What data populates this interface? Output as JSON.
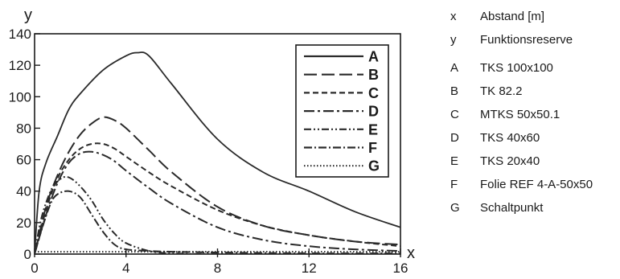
{
  "chart_data": {
    "type": "line",
    "xlabel": "x",
    "ylabel": "y",
    "xlim": [
      0,
      16
    ],
    "ylim": [
      0,
      140
    ],
    "x_ticks": [
      0,
      4,
      8,
      12,
      16
    ],
    "y_ticks": [
      0,
      20,
      40,
      60,
      80,
      100,
      120,
      140
    ],
    "grid": false,
    "legend_position": "top-right",
    "series": [
      {
        "name": "A",
        "dash": "solid",
        "x": [
          0,
          0.2,
          0.5,
          1,
          1.5,
          2,
          3,
          4,
          4.5,
          5,
          6,
          8,
          10,
          12,
          14,
          16
        ],
        "y": [
          0,
          40,
          58,
          75,
          92,
          102,
          117,
          126,
          128,
          126,
          108,
          73,
          52,
          40,
          27,
          17
        ]
      },
      {
        "name": "B",
        "dash": "long-dash",
        "x": [
          0,
          0.5,
          1,
          1.5,
          2,
          2.5,
          3,
          3.5,
          4,
          5,
          6,
          8,
          10,
          12,
          14,
          16
        ],
        "y": [
          0,
          30,
          50,
          65,
          76,
          83,
          87,
          85,
          80,
          66,
          52,
          30,
          18,
          12,
          8,
          6
        ]
      },
      {
        "name": "C",
        "dash": "short-dash",
        "x": [
          0,
          0.5,
          1,
          1.5,
          2,
          2.5,
          3,
          3.5,
          4,
          5,
          6,
          8,
          10,
          12,
          14,
          16
        ],
        "y": [
          0,
          28,
          48,
          60,
          67,
          70,
          70,
          67,
          62,
          52,
          43,
          28,
          18,
          12,
          8,
          5
        ]
      },
      {
        "name": "D",
        "dash": "dash-dot",
        "x": [
          0,
          0.5,
          1,
          1.5,
          2,
          2.5,
          3,
          3.5,
          4,
          5,
          6,
          8,
          10,
          12,
          14,
          16
        ],
        "y": [
          0,
          25,
          45,
          58,
          64,
          65,
          63,
          59,
          53,
          42,
          32,
          17,
          9,
          5,
          3,
          2
        ]
      },
      {
        "name": "E",
        "dash": "dash-dot-dot",
        "x": [
          0,
          0.3,
          0.7,
          1,
          1.3,
          1.6,
          2,
          2.5,
          3,
          3.5,
          4,
          5,
          6,
          8,
          12,
          16
        ],
        "y": [
          0,
          23,
          40,
          46,
          49,
          48,
          43,
          34,
          22,
          13,
          7,
          2,
          0.5,
          0,
          0,
          0
        ]
      },
      {
        "name": "F",
        "dash": "long-dash-dot",
        "x": [
          0,
          0.3,
          0.7,
          1,
          1.5,
          2,
          2.5,
          3,
          3.5,
          4,
          5,
          6,
          8,
          12,
          16
        ],
        "y": [
          0,
          15,
          32,
          38,
          40,
          36,
          25,
          14,
          6,
          3,
          2,
          1.5,
          1,
          0.5,
          0.5
        ]
      },
      {
        "name": "G",
        "dash": "dotted",
        "x": [
          0,
          16
        ],
        "y": [
          1.5,
          1.5
        ]
      }
    ]
  },
  "side_legend": [
    {
      "key": "x",
      "label": "Abstand [m]"
    },
    {
      "key": "y",
      "label": "Funktionsreserve"
    },
    {
      "key": "A",
      "label": "TKS 100x100"
    },
    {
      "key": "B",
      "label": "TK 82.2"
    },
    {
      "key": "C",
      "label": "MTKS 50x50.1"
    },
    {
      "key": "D",
      "label": "TKS 40x60"
    },
    {
      "key": "E",
      "label": "TKS 20x40"
    },
    {
      "key": "F",
      "label": "Folie REF 4-A-50x50"
    },
    {
      "key": "G",
      "label": "Schaltpunkt"
    }
  ]
}
